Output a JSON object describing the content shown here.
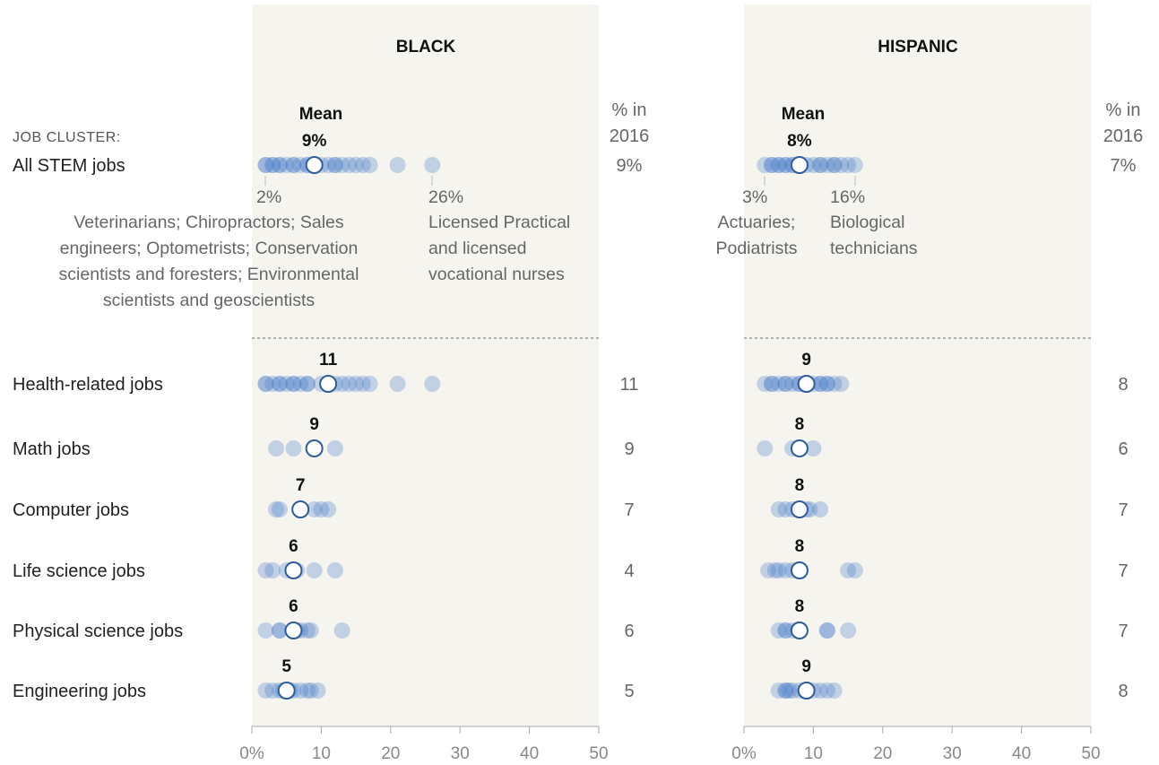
{
  "cluster_header": "JOB CLUSTER:",
  "pct_header": [
    "% in",
    "2016"
  ],
  "mean_title": "Mean",
  "chart_data": {
    "type": "scatter",
    "xlim": [
      0,
      50
    ],
    "x_ticks": [
      "0%",
      "10",
      "20",
      "30",
      "40",
      "50"
    ],
    "categories": [
      "All STEM jobs",
      "Health-related jobs",
      "Math jobs",
      "Computer jobs",
      "Life science jobs",
      "Physical science jobs",
      "Engineering jobs"
    ],
    "panels": [
      {
        "title": "BLACK",
        "range_labels": {
          "min": "2%",
          "max": "26%"
        },
        "range_values": [
          2,
          26
        ],
        "min_note": [
          "Veterinarians; Chiropractors; Sales",
          "engineers; Optometrists; Conservation",
          "scientists and foresters; Environmental",
          "scientists and geoscientists"
        ],
        "max_note": [
          "Licensed Practical",
          "and licensed",
          "vocational nurses"
        ],
        "rows": [
          {
            "mean": 9,
            "mean_label": "9%",
            "pct_2016": "9%",
            "points": [
              2,
              2,
              3,
              3,
              4,
              4,
              5,
              6,
              6,
              7,
              8,
              8,
              9,
              10,
              11,
              12,
              12,
              13,
              14,
              15,
              16,
              17,
              21,
              26
            ]
          },
          {
            "mean": 11,
            "mean_label": "11",
            "pct_2016": "11",
            "points": [
              2,
              2,
              3,
              4,
              4,
              5,
              6,
              6,
              7,
              8,
              8,
              10,
              11,
              12,
              13,
              14,
              15,
              16,
              17,
              21,
              26
            ]
          },
          {
            "mean": 9,
            "mean_label": "9",
            "pct_2016": "9",
            "points": [
              3.5,
              6,
              9,
              12
            ]
          },
          {
            "mean": 7,
            "mean_label": "7",
            "pct_2016": "7",
            "points": [
              3.5,
              4,
              7,
              9,
              10,
              11
            ]
          },
          {
            "mean": 6,
            "mean_label": "6",
            "pct_2016": "4",
            "points": [
              2,
              3,
              5,
              6,
              6.5,
              9,
              12
            ]
          },
          {
            "mean": 6,
            "mean_label": "6",
            "pct_2016": "6",
            "points": [
              2,
              4,
              4,
              6,
              6.5,
              7,
              8,
              8.5,
              13
            ]
          },
          {
            "mean": 5,
            "mean_label": "5",
            "pct_2016": "5",
            "points": [
              2,
              3,
              4,
              4.5,
              5,
              5.5,
              6,
              7,
              8,
              8.5,
              9.5
            ]
          }
        ]
      },
      {
        "title": "HISPANIC",
        "range_labels": {
          "min": "3%",
          "max": "16%"
        },
        "range_values": [
          3,
          16
        ],
        "min_note": [
          "Actuaries;",
          "Podiatrists"
        ],
        "max_note": [
          "Biological",
          "technicians"
        ],
        "rows": [
          {
            "mean": 8,
            "mean_label": "8%",
            "pct_2016": "7%",
            "points": [
              3,
              4,
              4,
              5,
              5,
              6,
              6,
              7,
              7,
              8,
              8,
              9,
              10,
              11,
              11,
              12,
              13,
              13,
              14,
              15,
              16
            ]
          },
          {
            "mean": 9,
            "mean_label": "9",
            "pct_2016": "8",
            "points": [
              3,
              4,
              4,
              5,
              6,
              6,
              7,
              8,
              8,
              9,
              10,
              11,
              11,
              12,
              12,
              13,
              14
            ]
          },
          {
            "mean": 8,
            "mean_label": "8",
            "pct_2016": "6",
            "points": [
              3,
              7,
              8,
              10
            ]
          },
          {
            "mean": 8,
            "mean_label": "8",
            "pct_2016": "7",
            "points": [
              5,
              6,
              7,
              8,
              8,
              9,
              9.5,
              11
            ]
          },
          {
            "mean": 8,
            "mean_label": "8",
            "pct_2016": "7",
            "points": [
              3.5,
              4.5,
              5,
              6,
              7,
              8,
              15,
              16
            ]
          },
          {
            "mean": 8,
            "mean_label": "8",
            "pct_2016": "7",
            "points": [
              5,
              6,
              6,
              7,
              8,
              12,
              12,
              15
            ]
          },
          {
            "mean": 9,
            "mean_label": "9",
            "pct_2016": "8",
            "points": [
              5,
              6,
              6,
              6.5,
              7,
              8,
              9,
              10,
              11,
              12,
              13
            ]
          }
        ]
      }
    ]
  }
}
